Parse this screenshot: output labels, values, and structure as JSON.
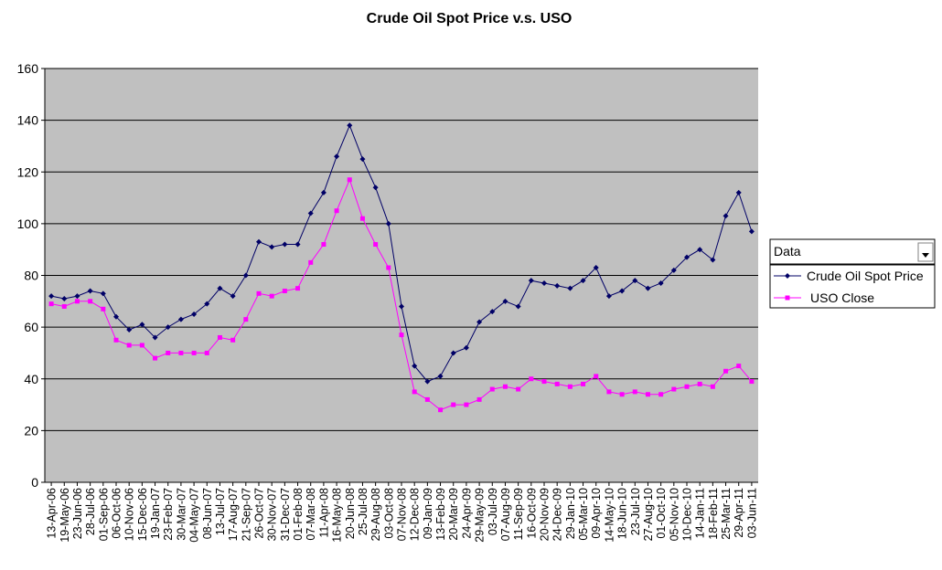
{
  "chart_data": {
    "type": "line",
    "title": "Crude Oil Spot Price v.s. USO",
    "xlabel": "",
    "ylabel": "",
    "ylim": [
      0,
      160
    ],
    "yticks": [
      0,
      20,
      40,
      60,
      80,
      100,
      120,
      140,
      160
    ],
    "grid": true,
    "legend_placement": "right",
    "legend_field": "Data",
    "plot_area_color": "#c0c0c0",
    "x": [
      "13-Apr-06",
      "19-May-06",
      "23-Jun-06",
      "28-Jul-06",
      "01-Sep-06",
      "06-Oct-06",
      "10-Nov-06",
      "15-Dec-06",
      "19-Jan-07",
      "23-Feb-07",
      "30-Mar-07",
      "04-May-07",
      "08-Jun-07",
      "13-Jul-07",
      "17-Aug-07",
      "21-Sep-07",
      "26-Oct-07",
      "30-Nov-07",
      "31-Dec-07",
      "01-Feb-08",
      "07-Mar-08",
      "11-Apr-08",
      "16-May-08",
      "20-Jun-08",
      "25-Jul-08",
      "29-Aug-08",
      "03-Oct-08",
      "07-Nov-08",
      "12-Dec-08",
      "09-Jan-09",
      "13-Feb-09",
      "20-Mar-09",
      "24-Apr-09",
      "29-May-09",
      "03-Jul-09",
      "07-Aug-09",
      "11-Sep-09",
      "16-Oct-09",
      "20-Nov-09",
      "24-Dec-09",
      "29-Jan-10",
      "05-Mar-10",
      "09-Apr-10",
      "14-May-10",
      "18-Jun-10",
      "23-Jul-10",
      "27-Aug-10",
      "01-Oct-10",
      "05-Nov-10",
      "10-Dec-10",
      "14-Jan-11",
      "18-Feb-11",
      "25-Mar-11",
      "29-Apr-11",
      "03-Jun-11"
    ],
    "series": [
      {
        "name": "Crude Oil Spot Price",
        "color": "#000066",
        "marker": "diamond",
        "values": [
          72,
          71,
          72,
          74,
          73,
          64,
          59,
          61,
          56,
          60,
          63,
          65,
          69,
          75,
          72,
          80,
          93,
          91,
          92,
          92,
          104,
          112,
          126,
          138,
          125,
          114,
          100,
          68,
          45,
          39,
          41,
          50,
          52,
          62,
          66,
          70,
          68,
          78,
          77,
          76,
          75,
          78,
          83,
          72,
          74,
          78,
          75,
          77,
          82,
          87,
          90,
          86,
          103,
          112,
          97
        ]
      },
      {
        "name": "USO Close",
        "color": "#ff00ff",
        "marker": "square",
        "values": [
          69,
          68,
          70,
          70,
          67,
          55,
          53,
          53,
          48,
          50,
          50,
          50,
          50,
          56,
          55,
          63,
          73,
          72,
          74,
          75,
          85,
          92,
          105,
          117,
          102,
          92,
          83,
          57,
          35,
          32,
          28,
          30,
          30,
          32,
          36,
          37,
          36,
          40,
          39,
          38,
          37,
          38,
          41,
          35,
          34,
          35,
          34,
          34,
          36,
          37,
          38,
          37,
          43,
          45,
          39
        ]
      }
    ]
  }
}
